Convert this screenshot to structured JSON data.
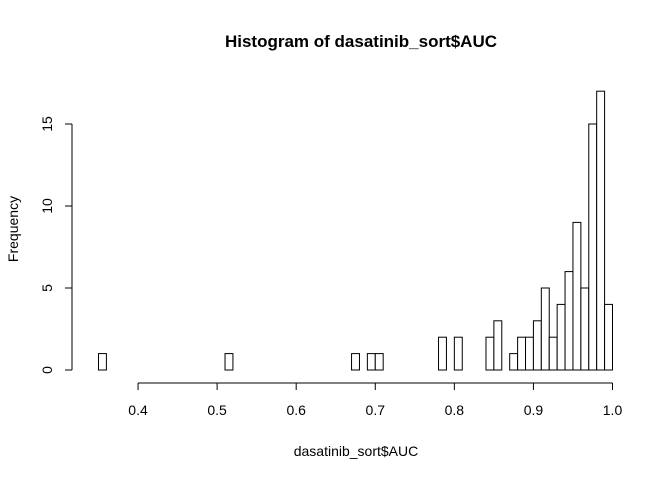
{
  "chart_data": {
    "type": "bar",
    "title": "Histogram of dasatinib_sort$AUC",
    "xlabel": "dasatinib_sort$AUC",
    "ylabel": "Frequency",
    "xlim": [
      0.35,
      1.0
    ],
    "ylim": [
      0,
      17
    ],
    "bin_width": 0.01,
    "x_ticks": [
      0.4,
      0.5,
      0.6,
      0.7,
      0.8,
      0.9,
      1.0
    ],
    "x_tick_labels": [
      "0.4",
      "0.5",
      "0.6",
      "0.7",
      "0.8",
      "0.9",
      "1.0"
    ],
    "y_ticks": [
      0,
      5,
      10,
      15
    ],
    "y_tick_labels": [
      "0",
      "5",
      "10",
      "15"
    ],
    "categories": [
      "0.35-0.36",
      "0.36-0.37",
      "0.37-0.38",
      "0.38-0.39",
      "0.39-0.40",
      "0.40-0.41",
      "0.41-0.42",
      "0.42-0.43",
      "0.43-0.44",
      "0.44-0.45",
      "0.45-0.46",
      "0.46-0.47",
      "0.47-0.48",
      "0.48-0.49",
      "0.49-0.50",
      "0.50-0.51",
      "0.51-0.52",
      "0.52-0.53",
      "0.53-0.54",
      "0.54-0.55",
      "0.55-0.56",
      "0.56-0.57",
      "0.57-0.58",
      "0.58-0.59",
      "0.59-0.60",
      "0.60-0.61",
      "0.61-0.62",
      "0.62-0.63",
      "0.63-0.64",
      "0.64-0.65",
      "0.65-0.66",
      "0.66-0.67",
      "0.67-0.68",
      "0.68-0.69",
      "0.69-0.70",
      "0.70-0.71",
      "0.71-0.72",
      "0.72-0.73",
      "0.73-0.74",
      "0.74-0.75",
      "0.75-0.76",
      "0.76-0.77",
      "0.77-0.78",
      "0.78-0.79",
      "0.79-0.80",
      "0.80-0.81",
      "0.81-0.82",
      "0.82-0.83",
      "0.83-0.84",
      "0.84-0.85",
      "0.85-0.86",
      "0.86-0.87",
      "0.87-0.88",
      "0.88-0.89",
      "0.89-0.90",
      "0.90-0.91",
      "0.91-0.92",
      "0.92-0.93",
      "0.93-0.94",
      "0.94-0.95",
      "0.95-0.96",
      "0.96-0.97",
      "0.97-0.98",
      "0.98-0.99",
      "0.99-1.00"
    ],
    "values": [
      1,
      0,
      0,
      0,
      0,
      0,
      0,
      0,
      0,
      0,
      0,
      0,
      0,
      0,
      0,
      0,
      1,
      0,
      0,
      0,
      0,
      0,
      0,
      0,
      0,
      0,
      0,
      0,
      0,
      0,
      0,
      0,
      1,
      0,
      1,
      1,
      0,
      0,
      0,
      0,
      0,
      0,
      0,
      2,
      0,
      2,
      0,
      0,
      0,
      2,
      3,
      0,
      1,
      2,
      2,
      3,
      5,
      2,
      4,
      6,
      9,
      5,
      15,
      17,
      4
    ],
    "grid": false,
    "legend": "none"
  }
}
